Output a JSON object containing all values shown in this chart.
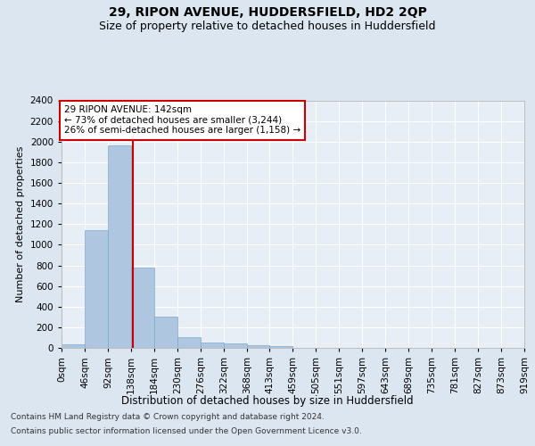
{
  "title": "29, RIPON AVENUE, HUDDERSFIELD, HD2 2QP",
  "subtitle": "Size of property relative to detached houses in Huddersfield",
  "xlabel": "Distribution of detached houses by size in Huddersfield",
  "ylabel": "Number of detached properties",
  "footer_line1": "Contains HM Land Registry data © Crown copyright and database right 2024.",
  "footer_line2": "Contains public sector information licensed under the Open Government Licence v3.0.",
  "bar_edges": [
    0,
    46,
    92,
    138,
    184,
    230,
    276,
    322,
    368,
    413,
    459,
    505,
    551,
    597,
    643,
    689,
    735,
    781,
    827,
    873,
    919
  ],
  "bar_heights": [
    35,
    1145,
    1960,
    780,
    300,
    100,
    50,
    40,
    30,
    20,
    0,
    0,
    0,
    0,
    0,
    0,
    0,
    0,
    0,
    0
  ],
  "bar_color": "#aec6df",
  "bar_edgecolor": "#7aaac8",
  "property_size": 142,
  "property_label": "29 RIPON AVENUE: 142sqm",
  "annotation_line1": "← 73% of detached houses are smaller (3,244)",
  "annotation_line2": "26% of semi-detached houses are larger (1,158) →",
  "vline_color": "#cc0000",
  "annotation_box_edgecolor": "#cc0000",
  "annotation_box_facecolor": "#ffffff",
  "ylim": [
    0,
    2400
  ],
  "yticks": [
    0,
    200,
    400,
    600,
    800,
    1000,
    1200,
    1400,
    1600,
    1800,
    2000,
    2200,
    2400
  ],
  "bg_color": "#dce6f0",
  "axes_bg_color": "#e8eef5",
  "grid_color": "#ffffff",
  "title_fontsize": 10,
  "subtitle_fontsize": 9,
  "xlabel_fontsize": 8.5,
  "ylabel_fontsize": 8,
  "tick_fontsize": 7.5,
  "annotation_fontsize": 7.5,
  "footer_fontsize": 6.5
}
